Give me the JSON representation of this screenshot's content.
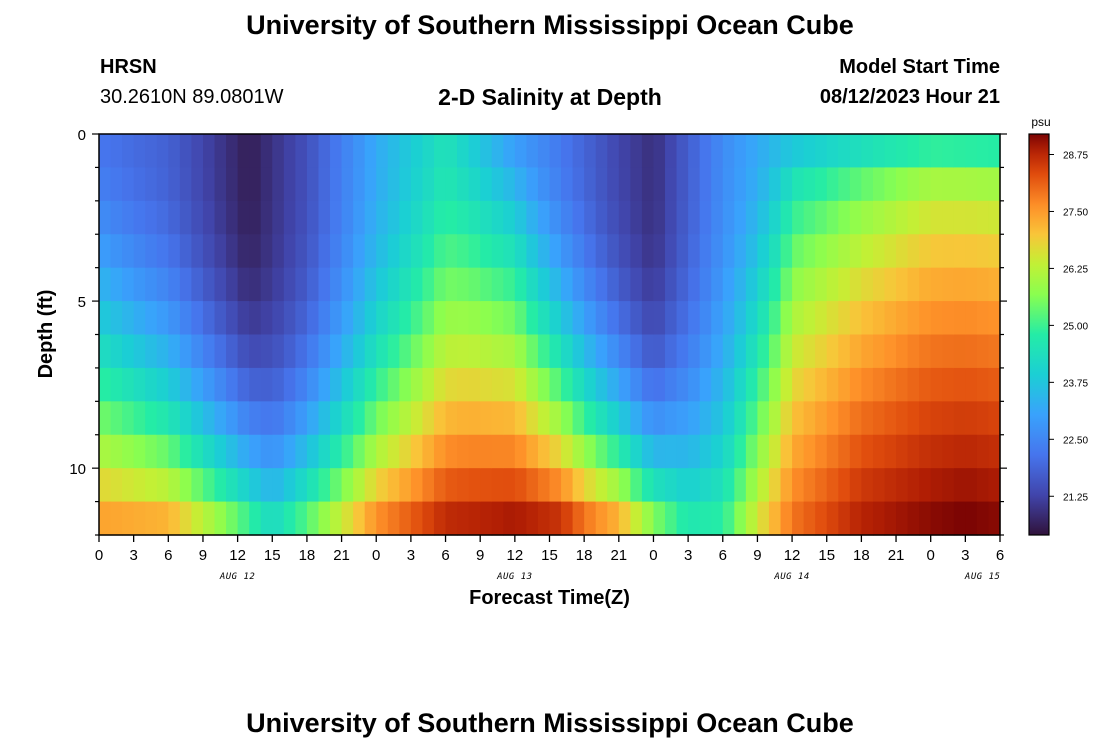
{
  "header": {
    "title": "University of Southern Mississippi Ocean Cube",
    "station": "HRSN",
    "coords": "30.2610N  89.0801W",
    "plot_title": "2-D Salinity at Depth",
    "start_label": "Model Start Time",
    "start_value": "08/12/2023 Hour 21"
  },
  "footer": {
    "title": "University of Southern Mississippi Ocean Cube"
  },
  "chart_data": {
    "type": "heatmap",
    "title": "2-D Salinity at Depth",
    "xlabel": "Forecast Time(Z)",
    "ylabel": "Depth (ft)",
    "x_tick_labels": [
      "0",
      "3",
      "6",
      "9",
      "12",
      "15",
      "18",
      "21",
      "0",
      "3",
      "6",
      "9",
      "12",
      "15",
      "18",
      "21",
      "0",
      "3",
      "6",
      "9",
      "12",
      "15",
      "18",
      "21",
      "0",
      "3",
      "6"
    ],
    "x_day_labels": [
      {
        "label": "AUG 12",
        "tick_index": 4
      },
      {
        "label": "AUG 13",
        "tick_index": 12
      },
      {
        "label": "AUG 14",
        "tick_index": 20
      },
      {
        "label": "AUG 15",
        "tick_index": 25.5
      }
    ],
    "x_range_hours": [
      0,
      78
    ],
    "y_range_ft": [
      0,
      12
    ],
    "y_tick_labels": [
      "0",
      "5",
      "10"
    ],
    "y_ticks": [
      0,
      5,
      10
    ],
    "depth_levels": 12,
    "colorbar": {
      "unit": "psu",
      "labels": [
        "28.75",
        "27.50",
        "26.25",
        "25.00",
        "23.75",
        "22.50",
        "21.25"
      ],
      "label_values": [
        28.75,
        27.5,
        26.25,
        25.0,
        23.75,
        22.5,
        21.25
      ],
      "range": [
        20.4,
        29.2
      ]
    },
    "surface_profile": {
      "hours": [
        0,
        6,
        13,
        18,
        24,
        30,
        36,
        45,
        48,
        54,
        60,
        66,
        72,
        78
      ],
      "psu": [
        22.2,
        21.8,
        20.6,
        21.5,
        23.2,
        24.5,
        23.0,
        21.3,
        20.9,
        22.6,
        23.8,
        24.4,
        24.9,
        24.8
      ]
    },
    "bottom_profile": {
      "hours": [
        0,
        6,
        12,
        15,
        18,
        24,
        30,
        36,
        40,
        42,
        45,
        48,
        51,
        54,
        57,
        60,
        66,
        72,
        75,
        78
      ],
      "psu": [
        27.4,
        27.2,
        25.3,
        24.2,
        25.2,
        27.6,
        28.7,
        28.9,
        28.6,
        27.9,
        27.2,
        25.6,
        24.6,
        24.8,
        26.5,
        27.9,
        28.8,
        29.1,
        29.2,
        29.1
      ]
    },
    "depth_shape": {
      "hours": [
        0,
        12,
        16,
        24,
        32,
        36,
        45,
        48,
        52,
        60,
        72,
        78
      ],
      "exponent": [
        1.45,
        2.7,
        3.1,
        2.1,
        1.2,
        1.1,
        2.6,
        3.1,
        2.5,
        0.75,
        0.55,
        0.55
      ]
    }
  }
}
